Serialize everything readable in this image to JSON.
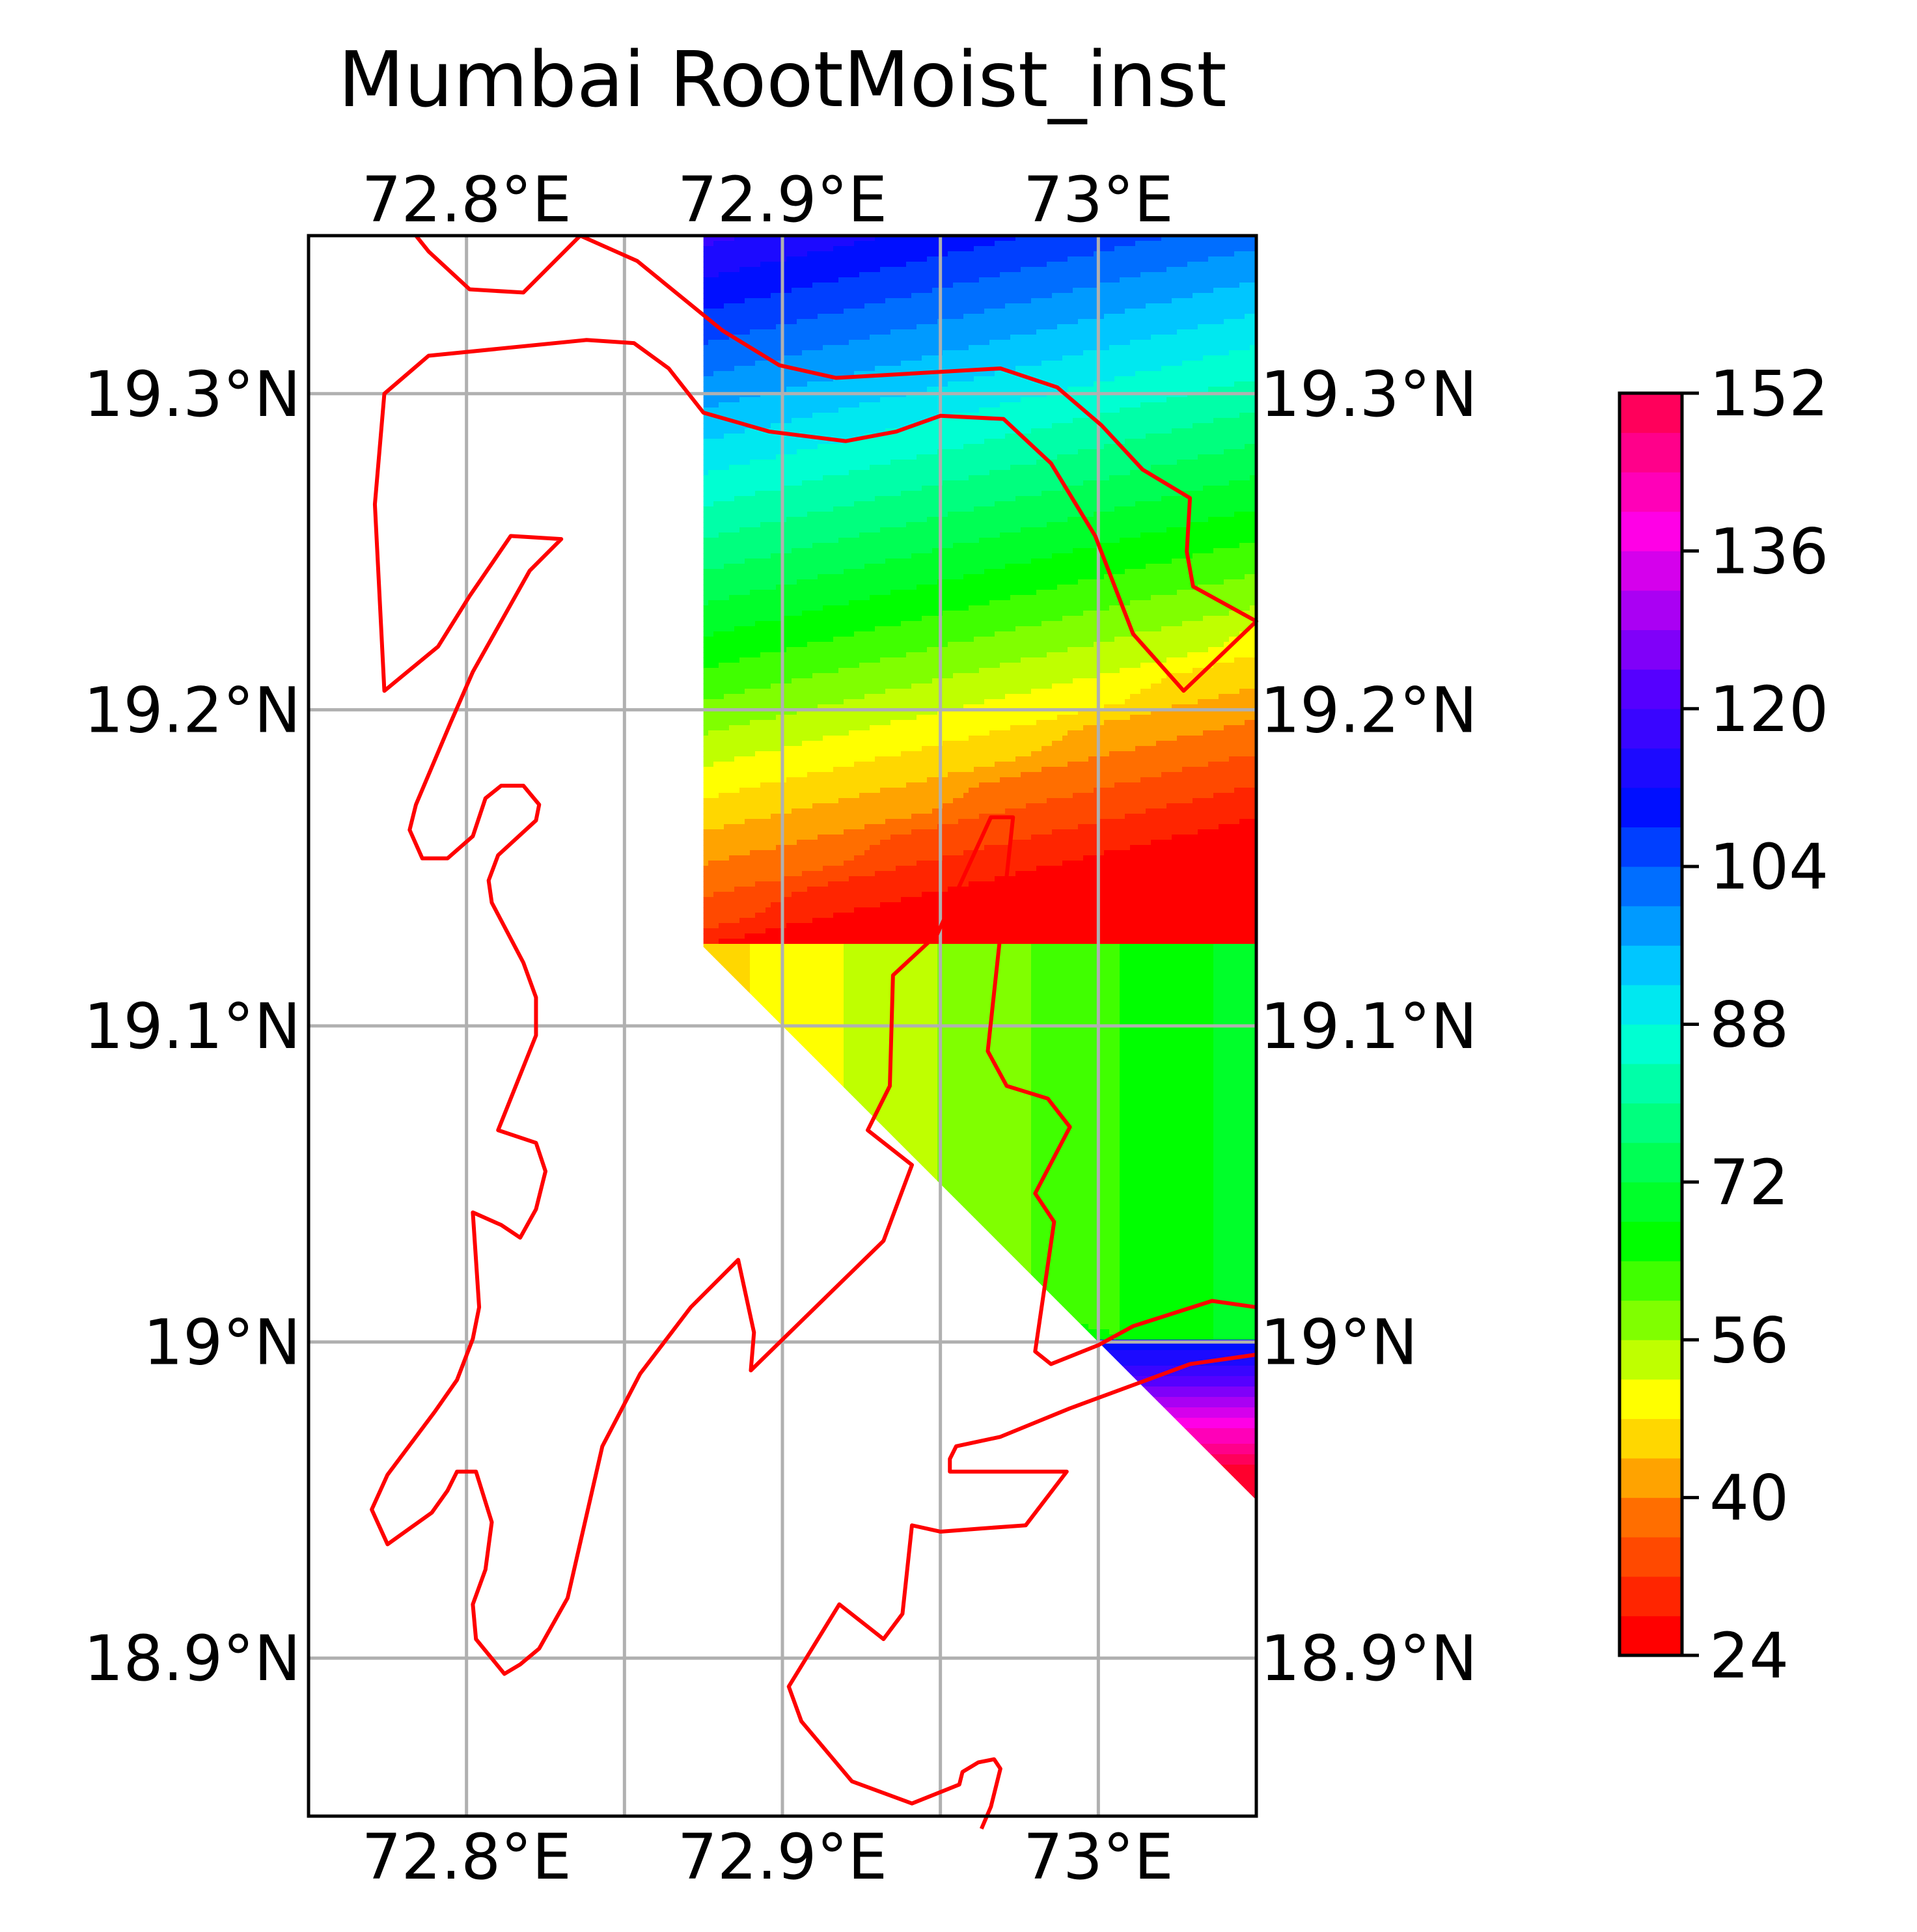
{
  "title": "Mumbai RootMoist_inst",
  "map": {
    "lon_range": [
      72.75,
      73.05
    ],
    "lat_range": [
      18.85,
      19.35
    ],
    "lon_ticks": [
      {
        "value": 72.8,
        "label": "72.8°E"
      },
      {
        "value": 72.9,
        "label": "72.9°E"
      },
      {
        "value": 73.0,
        "label": "73°E"
      }
    ],
    "lat_ticks": [
      {
        "value": 19.3,
        "label": "19.3°N"
      },
      {
        "value": 19.2,
        "label": "19.2°N"
      },
      {
        "value": 19.1,
        "label": "19.1°N"
      },
      {
        "value": 19.0,
        "label": "19°N"
      },
      {
        "value": 18.9,
        "label": "18.9°N"
      }
    ],
    "gridlines": true,
    "data_region_edge": [
      [
        72.875,
        19.35
      ],
      [
        73.05,
        19.35
      ],
      [
        73.05,
        18.95
      ],
      [
        72.875,
        19.125
      ]
    ],
    "coastline_color": "#ff0000",
    "coastlines": [
      [
        [
          72.784,
          19.35
        ],
        [
          72.788,
          19.345
        ],
        [
          72.801,
          19.333
        ],
        [
          72.818,
          19.332
        ],
        [
          72.836,
          19.35
        ]
      ],
      [
        [
          72.836,
          19.35
        ],
        [
          72.854,
          19.342
        ],
        [
          72.881,
          19.32
        ],
        [
          72.899,
          19.309
        ],
        [
          72.917,
          19.305
        ],
        [
          72.969,
          19.308
        ],
        [
          72.987,
          19.302
        ],
        [
          73.001,
          19.29
        ],
        [
          73.014,
          19.276
        ],
        [
          73.029,
          19.267
        ],
        [
          73.028,
          19.25
        ],
        [
          73.03,
          19.239
        ],
        [
          73.05,
          19.228
        ],
        [
          73.027,
          19.206
        ],
        [
          73.011,
          19.224
        ],
        [
          72.999,
          19.255
        ],
        [
          72.985,
          19.278
        ],
        [
          72.97,
          19.292
        ],
        [
          72.95,
          19.293
        ],
        [
          72.936,
          19.288
        ],
        [
          72.92,
          19.285
        ],
        [
          72.896,
          19.288
        ],
        [
          72.875,
          19.294
        ],
        [
          72.864,
          19.308
        ],
        [
          72.853,
          19.316
        ],
        [
          72.838,
          19.317
        ],
        [
          72.788,
          19.312
        ],
        [
          72.774,
          19.3
        ],
        [
          72.771,
          19.265
        ],
        [
          72.774,
          19.206
        ],
        [
          72.791,
          19.22
        ],
        [
          72.801,
          19.236
        ],
        [
          72.814,
          19.255
        ],
        [
          72.83,
          19.254
        ],
        [
          72.82,
          19.244
        ],
        [
          72.811,
          19.228
        ],
        [
          72.802,
          19.212
        ],
        [
          72.795,
          19.196
        ],
        [
          72.784,
          19.17
        ],
        [
          72.782,
          19.162
        ],
        [
          72.786,
          19.153
        ],
        [
          72.794,
          19.153
        ],
        [
          72.802,
          19.16
        ],
        [
          72.806,
          19.172
        ],
        [
          72.811,
          19.176
        ],
        [
          72.818,
          19.176
        ],
        [
          72.823,
          19.17
        ],
        [
          72.822,
          19.165
        ],
        [
          72.81,
          19.154
        ],
        [
          72.807,
          19.146
        ],
        [
          72.808,
          19.139
        ],
        [
          72.818,
          19.12
        ],
        [
          72.822,
          19.109
        ],
        [
          72.822,
          19.097
        ],
        [
          72.81,
          19.067
        ],
        [
          72.822,
          19.063
        ],
        [
          72.825,
          19.054
        ],
        [
          72.822,
          19.042
        ],
        [
          72.817,
          19.033
        ],
        [
          72.811,
          19.037
        ],
        [
          72.802,
          19.041
        ],
        [
          72.804,
          19.011
        ],
        [
          72.802,
          19.001
        ],
        [
          72.797,
          18.988
        ],
        [
          72.79,
          18.978
        ],
        [
          72.775,
          18.958
        ],
        [
          72.77,
          18.947
        ],
        [
          72.775,
          18.936
        ],
        [
          72.789,
          18.946
        ],
        [
          72.794,
          18.953
        ],
        [
          72.797,
          18.959
        ],
        [
          72.803,
          18.959
        ],
        [
          72.808,
          18.943
        ],
        [
          72.806,
          18.928
        ],
        [
          72.802,
          18.917
        ],
        [
          72.803,
          18.906
        ],
        [
          72.812,
          18.895
        ],
        [
          72.817,
          18.898
        ],
        [
          72.823,
          18.903
        ],
        [
          72.832,
          18.919
        ],
        [
          72.843,
          18.967
        ],
        [
          72.855,
          18.99
        ],
        [
          72.871,
          19.011
        ],
        [
          72.886,
          19.026
        ],
        [
          72.891,
          19.003
        ],
        [
          72.89,
          18.991
        ],
        [
          72.932,
          19.032
        ],
        [
          72.941,
          19.056
        ],
        [
          72.927,
          19.067
        ],
        [
          72.934,
          19.081
        ],
        [
          72.935,
          19.116
        ],
        [
          72.949,
          19.129
        ],
        [
          72.966,
          19.166
        ],
        [
          72.973,
          19.166
        ],
        [
          72.965,
          19.092
        ],
        [
          72.971,
          19.081
        ],
        [
          72.984,
          19.077
        ],
        [
          72.991,
          19.068
        ],
        [
          72.98,
          19.047
        ],
        [
          72.986,
          19.038
        ],
        [
          72.98,
          18.997
        ],
        [
          72.985,
          18.993
        ],
        [
          73.0,
          18.999
        ],
        [
          73.011,
          19.005
        ],
        [
          73.036,
          19.013
        ],
        [
          73.05,
          19.011
        ]
      ],
      [
        [
          73.05,
          18.996
        ],
        [
          73.029,
          18.993
        ],
        [
          72.991,
          18.979
        ],
        [
          72.969,
          18.97
        ],
        [
          72.955,
          18.967
        ],
        [
          72.953,
          18.963
        ],
        [
          72.953,
          18.959
        ],
        [
          72.965,
          18.959
        ],
        [
          72.978,
          18.959
        ],
        [
          72.987,
          18.959
        ],
        [
          72.99,
          18.959
        ],
        [
          72.977,
          18.942
        ],
        [
          72.963,
          18.941
        ],
        [
          72.95,
          18.94
        ],
        [
          72.941,
          18.942
        ],
        [
          72.938,
          18.914
        ],
        [
          72.932,
          18.906
        ],
        [
          72.918,
          18.917
        ],
        [
          72.902,
          18.891
        ],
        [
          72.906,
          18.88
        ],
        [
          72.922,
          18.861
        ],
        [
          72.941,
          18.854
        ],
        [
          72.956,
          18.86
        ],
        [
          72.957,
          18.864
        ],
        [
          72.962,
          18.867
        ],
        [
          72.967,
          18.868
        ],
        [
          72.969,
          18.865
        ],
        [
          72.966,
          18.853
        ],
        [
          72.963,
          18.846
        ]
      ]
    ]
  },
  "colorbar": {
    "min": 24,
    "max": 152,
    "step": 4,
    "ticks": [
      {
        "value": 24,
        "label": "24"
      },
      {
        "value": 40,
        "label": "40"
      },
      {
        "value": 56,
        "label": "56"
      },
      {
        "value": 72,
        "label": "72"
      },
      {
        "value": 88,
        "label": "88"
      },
      {
        "value": 104,
        "label": "104"
      },
      {
        "value": 120,
        "label": "120"
      },
      {
        "value": 136,
        "label": "136"
      },
      {
        "value": 152,
        "label": "152"
      }
    ]
  }
}
